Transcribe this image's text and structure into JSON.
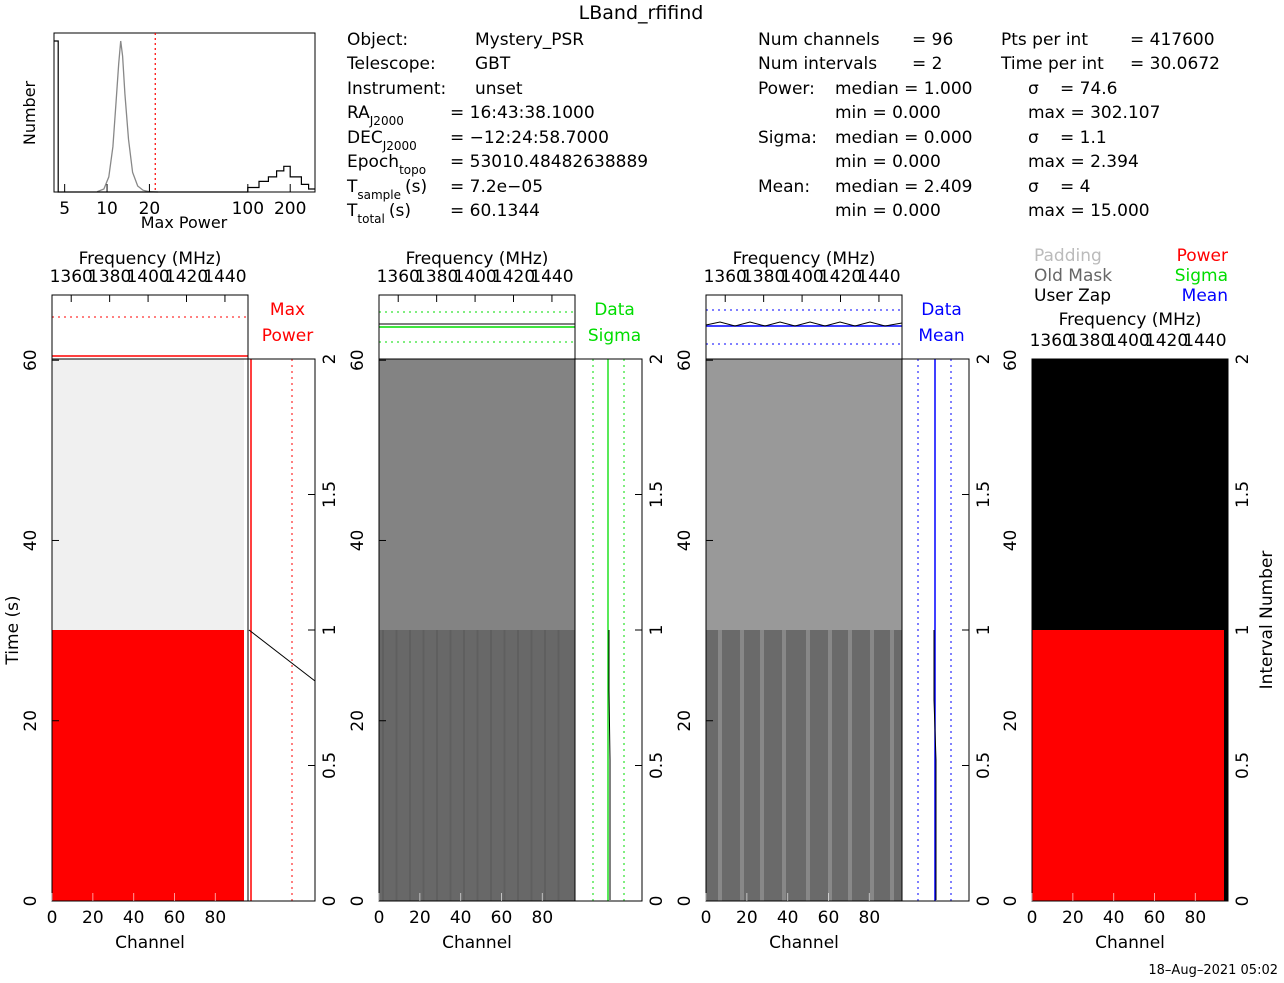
{
  "title": "LBand_rfifind",
  "timestamp": "18–Aug–2021  05:02",
  "info": {
    "col1": [
      [
        "Object:",
        "Mystery_PSR"
      ],
      [
        "Telescope:",
        "GBT"
      ],
      [
        "Instrument:",
        "unset"
      ]
    ],
    "ra": {
      "main": "RA",
      "sub": "J2000",
      "value": "=  16:43:38.1000"
    },
    "dec": {
      "main": "DEC",
      "sub": "J2000",
      "value": "=  −12:24:58.7000"
    },
    "epoch": {
      "main": "Epoch",
      "sub": "topo",
      "value": "=  53010.48482638889"
    },
    "tsample": {
      "main": "T",
      "sub": "sample",
      "unit": "(s)",
      "value": "=  7.2e−05"
    },
    "ttotal": {
      "main": "T",
      "sub": "total",
      "unit": "(s)",
      "value": "=  60.1344"
    },
    "stats": {
      "num_channels": {
        "label": "Num channels",
        "value": "=  96"
      },
      "num_intervals": {
        "label": "Num intervals",
        "value": "=  2"
      },
      "pts_per_int": {
        "label": "Pts per int",
        "value": "=  417600"
      },
      "time_per_int": {
        "label": "Time per int",
        "value": "=  30.0672"
      },
      "power": {
        "label": "Power:",
        "median": "median  =  1.000",
        "min": "min  =  0.000",
        "sigma": "=  74.6",
        "max": "max  =  302.107"
      },
      "sigma": {
        "label": "Sigma:",
        "median": "median  =  0.000",
        "min": "min  =  0.000",
        "sigma": "=  1.1",
        "max": "max  =  2.394"
      },
      "mean": {
        "label": "Mean:",
        "median": "median  =  2.409",
        "min": "min  =  0.000",
        "sigma": "=  4",
        "max": "max  =  15.000"
      },
      "sigma_symbol": "σ"
    }
  },
  "legend": {
    "padding": {
      "label": "Padding",
      "color": "#bbbbbb"
    },
    "old_mask": {
      "label": "Old Mask",
      "color": "#666666"
    },
    "user_zap": {
      "label": "User Zap",
      "color": "#000000"
    },
    "power": {
      "label": "Power",
      "color": "#ff0000"
    },
    "sigma": {
      "label": "Sigma",
      "color": "#00dd00"
    },
    "mean": {
      "label": "Mean",
      "color": "#0000ff"
    }
  },
  "chart_data": [
    {
      "id": "histogram",
      "type": "line",
      "xlabel": "Max Power",
      "ylabel": "Number",
      "xscale": "log",
      "xticks": [
        "5",
        "10",
        "20",
        "100",
        "200"
      ],
      "xtick_values": [
        5,
        10,
        20,
        100,
        200
      ],
      "xlim": [
        4.2,
        300
      ],
      "ylim": [
        0,
        1
      ],
      "threshold": 22,
      "curve_gray": [
        [
          8.5,
          0.002
        ],
        [
          9.5,
          0.02
        ],
        [
          10.3,
          0.1
        ],
        [
          11,
          0.3
        ],
        [
          11.6,
          0.6
        ],
        [
          12.1,
          0.85
        ],
        [
          12.5,
          1.0
        ],
        [
          12.9,
          0.9
        ],
        [
          13.4,
          0.65
        ],
        [
          14.2,
          0.35
        ],
        [
          15.2,
          0.13
        ],
        [
          16.5,
          0.04
        ],
        [
          18,
          0.012
        ],
        [
          20,
          0.002
        ],
        [
          23,
          0
        ]
      ],
      "curve_black": [
        [
          4.2,
          1.0
        ],
        [
          4.5,
          1.0
        ],
        [
          4.5,
          0
        ],
        [
          100,
          0
        ],
        [
          100,
          0.03
        ],
        [
          120,
          0.03
        ],
        [
          120,
          0.07
        ],
        [
          140,
          0.07
        ],
        [
          140,
          0.1
        ],
        [
          160,
          0.1
        ],
        [
          160,
          0.14
        ],
        [
          180,
          0.14
        ],
        [
          180,
          0.17
        ],
        [
          200,
          0.17
        ],
        [
          200,
          0.1
        ],
        [
          240,
          0.1
        ],
        [
          240,
          0.05
        ],
        [
          270,
          0.05
        ],
        [
          270,
          0.02
        ],
        [
          300,
          0.02
        ]
      ]
    },
    {
      "id": "power-panel",
      "type": "heatmap",
      "xlabel": "Channel",
      "ylabel": "Time (s)",
      "top_label": "Frequency (MHz)",
      "freq_ticks": [
        "1360",
        "1380",
        "1400",
        "1420",
        "1440"
      ],
      "freq_tick_values": [
        1360,
        1380,
        1400,
        1420,
        1440
      ],
      "channel_ticks": [
        "0",
        "20",
        "40",
        "60",
        "80"
      ],
      "channel_tick_values": [
        0,
        20,
        40,
        60,
        80
      ],
      "xlim": [
        0,
        96
      ],
      "time_ticks": [
        "0",
        "20",
        "40",
        "60"
      ],
      "time_tick_values": [
        0,
        20,
        40,
        60
      ],
      "time_lim": [
        0,
        60.1344
      ],
      "interval_ticks": [
        "0",
        "0.5",
        "1",
        "1.5",
        "2"
      ],
      "interval_tick_values": [
        0,
        0.5,
        1,
        1.5,
        2
      ],
      "side_labels": [
        "Max",
        "Power"
      ],
      "side_label_color": "#ff0000",
      "blocks": [
        {
          "t0": 0,
          "t1": 30.0672,
          "color": "#ff0000"
        },
        {
          "t0": 30.0672,
          "t1": 60.1344,
          "color": "#f0f0f0"
        }
      ]
    },
    {
      "id": "sigma-panel",
      "type": "heatmap",
      "xlabel": "Channel",
      "top_label": "Frequency (MHz)",
      "side_labels": [
        "Data",
        "Sigma"
      ],
      "side_label_color": "#00dd00",
      "blocks": [
        {
          "t0": 0,
          "t1": 30.0672,
          "color": "#686868"
        },
        {
          "t0": 30.0672,
          "t1": 60.1344,
          "color": "#838383"
        }
      ]
    },
    {
      "id": "mean-panel",
      "type": "heatmap",
      "xlabel": "Channel",
      "top_label": "Frequency (MHz)",
      "side_labels": [
        "Data",
        "Mean"
      ],
      "side_label_color": "#0000ff",
      "blocks": [
        {
          "t0": 0,
          "t1": 30.0672,
          "color": "#6a6a6a"
        },
        {
          "t0": 30.0672,
          "t1": 60.1344,
          "color": "#999999"
        }
      ]
    },
    {
      "id": "mask-panel",
      "type": "heatmap",
      "xlabel": "Channel",
      "ylabel_right": "Interval Number",
      "top_label": "Frequency (MHz)",
      "blocks": [
        {
          "t0": 0,
          "t1": 30.0672,
          "color": "#ff0000"
        },
        {
          "t0": 30.0672,
          "t1": 60.1344,
          "color": "#000000"
        }
      ]
    }
  ]
}
